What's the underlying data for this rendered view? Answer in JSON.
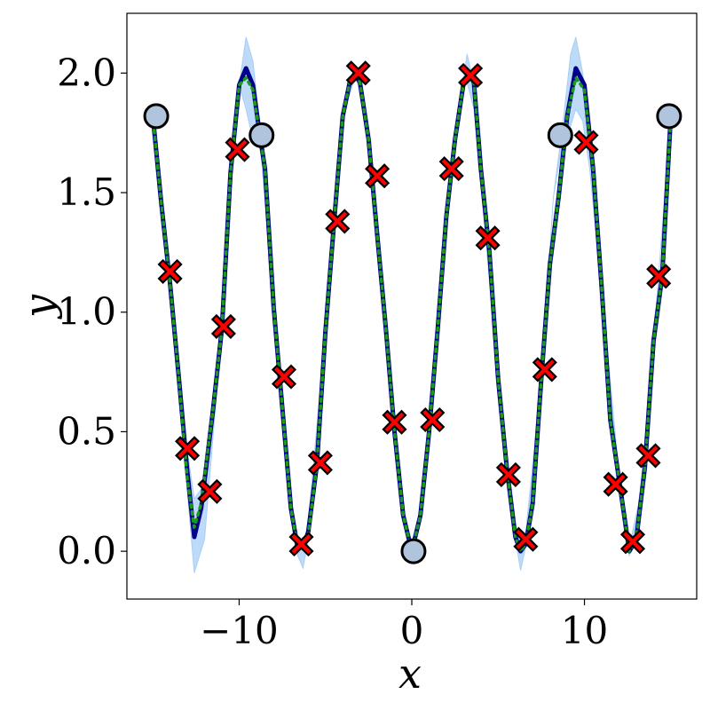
{
  "chart_data": {
    "type": "line",
    "title": "",
    "xlabel": "x",
    "ylabel": "y",
    "xlim": [
      -16.5,
      16.5
    ],
    "ylim": [
      -0.2,
      2.25
    ],
    "xticks": [
      -10,
      0,
      10
    ],
    "xtick_labels": [
      "−10",
      "0",
      "10"
    ],
    "yticks": [
      0.0,
      0.5,
      1.0,
      1.5,
      2.0
    ],
    "ytick_labels": [
      "0.0",
      "0.5",
      "1.0",
      "1.5",
      "2.0"
    ],
    "grid": false,
    "legend": "none",
    "series": [
      {
        "kind": "band",
        "color": "#a7cff5",
        "x": [
          -15.0,
          -14.0,
          -13.5,
          -13.0,
          -12.6,
          -12.0,
          -11.0,
          -10.4,
          -10.0,
          -9.6,
          -9.2,
          -8.8,
          -8.0,
          -7.0,
          -6.6,
          -6.3,
          -6.0,
          -5.0,
          -4.0,
          -3.3,
          -3.0,
          -2.5,
          -1.5,
          -0.8,
          -0.3,
          0.0,
          0.3,
          0.8,
          1.5,
          2.5,
          3.0,
          3.2,
          3.6,
          4.0,
          5.0,
          6.0,
          6.3,
          6.6,
          7.5,
          8.2,
          8.8,
          9.2,
          9.5,
          9.9,
          10.3,
          11.0,
          12.0,
          12.6,
          13.2,
          14.0,
          15.0
        ],
        "upper": [
          1.82,
          1.12,
          0.75,
          0.42,
          0.22,
          0.28,
          0.93,
          1.58,
          1.95,
          2.15,
          2.05,
          1.78,
          1.02,
          0.18,
          0.03,
          0.02,
          0.12,
          0.92,
          1.82,
          2.03,
          1.98,
          1.72,
          0.93,
          0.33,
          0.06,
          0.0,
          0.06,
          0.33,
          0.93,
          1.72,
          1.98,
          2.08,
          1.95,
          1.62,
          0.72,
          0.1,
          0.03,
          0.08,
          0.72,
          1.48,
          1.82,
          2.08,
          2.15,
          2.0,
          1.7,
          1.1,
          0.32,
          0.02,
          0.22,
          0.88,
          1.82
        ],
        "lower": [
          1.82,
          1.12,
          0.7,
          0.25,
          -0.09,
          0.05,
          0.93,
          1.58,
          1.95,
          1.85,
          1.72,
          1.72,
          1.02,
          0.18,
          -0.02,
          -0.07,
          0.05,
          0.92,
          1.82,
          1.98,
          1.94,
          1.72,
          0.93,
          0.33,
          0.06,
          0.0,
          0.06,
          0.33,
          0.93,
          1.72,
          1.94,
          1.96,
          1.85,
          1.55,
          0.7,
          0.05,
          -0.08,
          0.02,
          0.72,
          1.48,
          1.74,
          1.78,
          1.85,
          1.8,
          1.6,
          1.08,
          0.25,
          -0.02,
          0.2,
          0.88,
          1.82
        ]
      },
      {
        "kind": "line",
        "color": "#00008b",
        "style": "solid",
        "x": [
          -15.0,
          -14.5,
          -14.0,
          -13.5,
          -13.0,
          -12.6,
          -12.2,
          -11.5,
          -11.0,
          -10.5,
          -10.0,
          -9.6,
          -9.2,
          -8.8,
          -8.5,
          -8.0,
          -7.5,
          -7.0,
          -6.6,
          -6.3,
          -6.0,
          -5.5,
          -5.0,
          -4.5,
          -4.0,
          -3.6,
          -3.3,
          -3.0,
          -2.5,
          -2.0,
          -1.5,
          -1.0,
          -0.5,
          0.0,
          0.5,
          1.0,
          1.5,
          2.0,
          2.5,
          3.0,
          3.3,
          3.6,
          4.0,
          4.5,
          5.0,
          5.5,
          6.0,
          6.3,
          6.6,
          7.0,
          7.5,
          8.0,
          8.5,
          9.0,
          9.5,
          10.0,
          10.5,
          11.0,
          11.5,
          12.0,
          12.6,
          13.0,
          13.5,
          14.0,
          14.5,
          15.0
        ],
        "y": [
          1.82,
          1.45,
          1.12,
          0.73,
          0.33,
          0.06,
          0.18,
          0.6,
          0.93,
          1.58,
          1.95,
          2.02,
          1.95,
          1.74,
          1.6,
          1.02,
          0.6,
          0.18,
          0.01,
          0.02,
          0.08,
          0.36,
          0.92,
          1.38,
          1.82,
          1.96,
          2.0,
          1.96,
          1.72,
          1.32,
          0.93,
          0.5,
          0.15,
          0.0,
          0.15,
          0.5,
          0.93,
          1.4,
          1.72,
          1.96,
          2.0,
          1.96,
          1.6,
          1.25,
          0.72,
          0.35,
          0.06,
          0.0,
          0.03,
          0.2,
          0.72,
          1.2,
          1.48,
          1.82,
          2.02,
          1.95,
          1.6,
          1.1,
          0.55,
          0.3,
          0.0,
          0.05,
          0.35,
          0.88,
          1.15,
          1.82
        ]
      },
      {
        "kind": "line",
        "color": "#1a9a1a",
        "style": "dotted",
        "x": [
          -15.0,
          -14.5,
          -14.0,
          -13.5,
          -13.0,
          -12.6,
          -12.2,
          -11.5,
          -11.0,
          -10.5,
          -10.0,
          -9.6,
          -9.2,
          -8.8,
          -8.5,
          -8.0,
          -7.5,
          -7.0,
          -6.6,
          -6.3,
          -6.0,
          -5.5,
          -5.0,
          -4.5,
          -4.0,
          -3.6,
          -3.3,
          -3.0,
          -2.5,
          -2.0,
          -1.5,
          -1.0,
          -0.5,
          0.0,
          0.5,
          1.0,
          1.5,
          2.0,
          2.5,
          3.0,
          3.3,
          3.6,
          4.0,
          4.5,
          5.0,
          5.5,
          6.0,
          6.3,
          6.6,
          7.0,
          7.5,
          8.0,
          8.5,
          9.0,
          9.5,
          10.0,
          10.5,
          11.0,
          11.5,
          12.0,
          12.6,
          13.0,
          13.5,
          14.0,
          14.5,
          15.0
        ],
        "y": [
          1.82,
          1.45,
          1.12,
          0.73,
          0.3,
          0.1,
          0.2,
          0.6,
          0.93,
          1.58,
          1.95,
          1.98,
          1.93,
          1.74,
          1.6,
          1.02,
          0.6,
          0.18,
          0.01,
          0.01,
          0.07,
          0.36,
          0.92,
          1.38,
          1.82,
          1.96,
          2.0,
          1.96,
          1.72,
          1.32,
          0.93,
          0.5,
          0.15,
          0.0,
          0.15,
          0.5,
          0.93,
          1.4,
          1.72,
          1.96,
          2.0,
          1.96,
          1.6,
          1.25,
          0.72,
          0.35,
          0.06,
          0.0,
          0.03,
          0.2,
          0.72,
          1.2,
          1.48,
          1.82,
          1.98,
          1.93,
          1.6,
          1.1,
          0.55,
          0.3,
          0.0,
          0.05,
          0.35,
          0.88,
          1.15,
          1.82
        ]
      },
      {
        "kind": "scatter",
        "marker": "circle",
        "color": "#b0c4de",
        "points": [
          [
            -14.8,
            1.82
          ],
          [
            -8.7,
            1.74
          ],
          [
            0.1,
            0.0
          ],
          [
            8.6,
            1.74
          ],
          [
            14.9,
            1.82
          ]
        ]
      },
      {
        "kind": "scatter",
        "marker": "x",
        "color": "#ff0000",
        "points": [
          [
            -14.0,
            1.17
          ],
          [
            -13.0,
            0.43
          ],
          [
            -11.7,
            0.25
          ],
          [
            -10.9,
            0.94
          ],
          [
            -10.1,
            1.68
          ],
          [
            -7.4,
            0.73
          ],
          [
            -6.4,
            0.03
          ],
          [
            -5.3,
            0.37
          ],
          [
            -4.3,
            1.38
          ],
          [
            -3.1,
            2.0
          ],
          [
            -2.0,
            1.57
          ],
          [
            -1.0,
            0.54
          ],
          [
            1.2,
            0.55
          ],
          [
            2.3,
            1.6
          ],
          [
            3.4,
            1.99
          ],
          [
            4.4,
            1.31
          ],
          [
            5.6,
            0.32
          ],
          [
            6.6,
            0.05
          ],
          [
            7.7,
            0.76
          ],
          [
            10.1,
            1.71
          ],
          [
            11.8,
            0.28
          ],
          [
            12.8,
            0.04
          ],
          [
            13.7,
            0.4
          ],
          [
            14.3,
            1.15
          ]
        ]
      }
    ]
  }
}
